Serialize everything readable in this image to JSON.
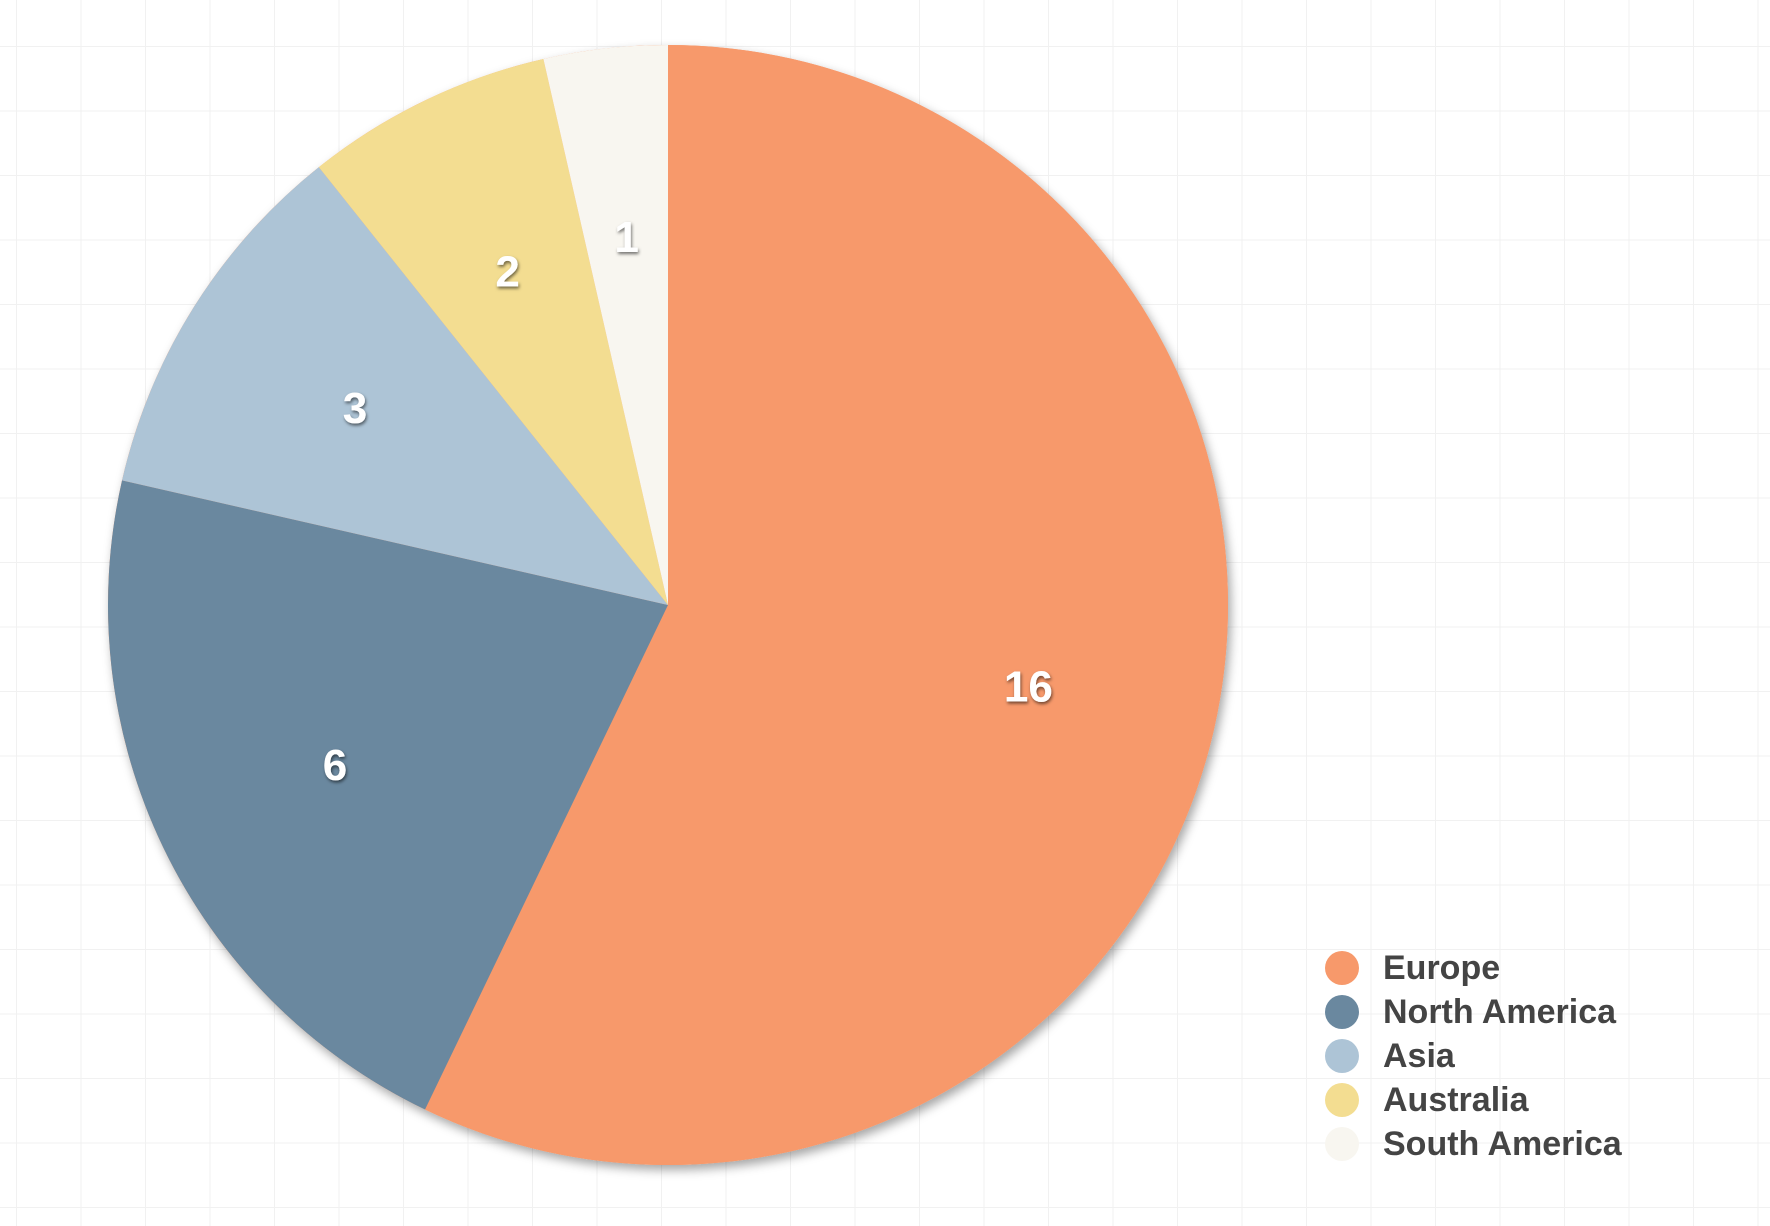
{
  "chart_data": {
    "type": "pie",
    "categories": [
      "Europe",
      "North America",
      "Asia",
      "Australia",
      "South America"
    ],
    "values": [
      16,
      6,
      3,
      2,
      1
    ],
    "colors": [
      "#f7996b",
      "#6a889f",
      "#adc4d6",
      "#f3dd91",
      "#f8f6f0"
    ],
    "data_labels": [
      "16",
      "6",
      "3",
      "2",
      "1"
    ],
    "start_angle_deg": 0,
    "direction": "clockwise",
    "legend_position": "bottom-right",
    "title": "",
    "grid": true
  },
  "legend": {
    "items": [
      {
        "label": "Europe",
        "color": "#f7996b"
      },
      {
        "label": "North America",
        "color": "#6a889f"
      },
      {
        "label": "Asia",
        "color": "#adc4d6"
      },
      {
        "label": "Australia",
        "color": "#f3dd91"
      },
      {
        "label": "South America",
        "color": "#f8f6f0"
      }
    ]
  }
}
